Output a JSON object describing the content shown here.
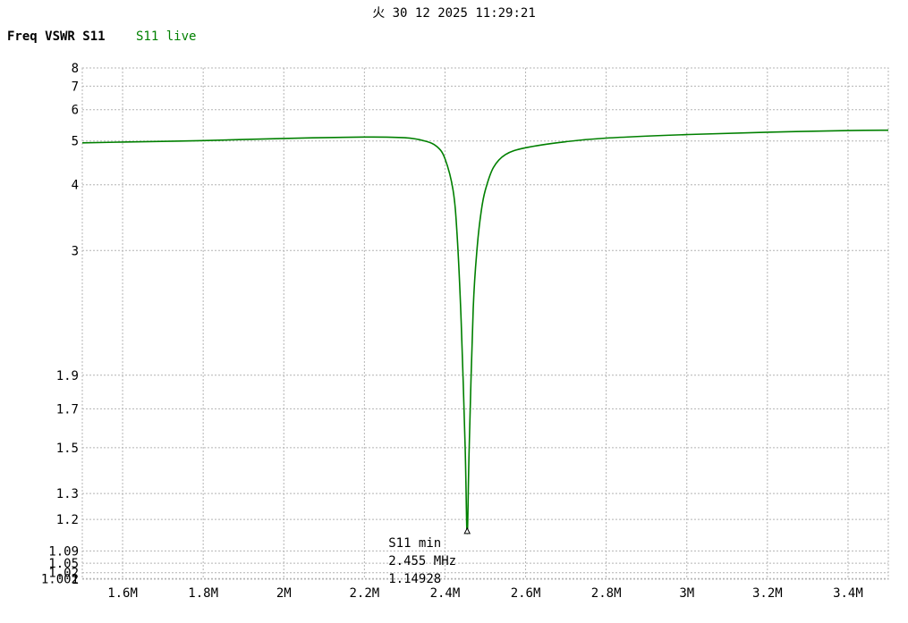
{
  "header": {
    "timestamp": "火 30 12 2025 11:29:21",
    "title": "Freq VSWR S11",
    "legend": "S11 live"
  },
  "colors": {
    "series": "#008000",
    "grid": "#b4b4b4",
    "text": "#000000"
  },
  "chart_data": {
    "type": "line",
    "title": "Freq VSWR S11",
    "xlabel": "",
    "ylabel": "",
    "xscale": "linear",
    "yscale": "vswr (reflection-coefficient scale)",
    "xlim": [
      1.5,
      3.5
    ],
    "ylim": [
      1,
      8
    ],
    "grid": true,
    "legend_position": "top-left",
    "x_ticks": [
      {
        "value": 1.6,
        "label": "1.6M"
      },
      {
        "value": 1.8,
        "label": "1.8M"
      },
      {
        "value": 2.0,
        "label": "2M"
      },
      {
        "value": 2.2,
        "label": "2.2M"
      },
      {
        "value": 2.4,
        "label": "2.4M"
      },
      {
        "value": 2.6,
        "label": "2.6M"
      },
      {
        "value": 2.8,
        "label": "2.8M"
      },
      {
        "value": 3.0,
        "label": "3M"
      },
      {
        "value": 3.2,
        "label": "3.2M"
      },
      {
        "value": 3.4,
        "label": "3.4M"
      }
    ],
    "y_ticks": [
      {
        "value": 8,
        "label": "8"
      },
      {
        "value": 7,
        "label": "7"
      },
      {
        "value": 6,
        "label": "6"
      },
      {
        "value": 5,
        "label": "5"
      },
      {
        "value": 4,
        "label": "4"
      },
      {
        "value": 3,
        "label": "3"
      },
      {
        "value": 1.9,
        "label": "1.9"
      },
      {
        "value": 1.7,
        "label": "1.7"
      },
      {
        "value": 1.5,
        "label": "1.5"
      },
      {
        "value": 1.3,
        "label": "1.3"
      },
      {
        "value": 1.2,
        "label": "1.2"
      },
      {
        "value": 1.09,
        "label": "1.09"
      },
      {
        "value": 1.05,
        "label": "1.05"
      },
      {
        "value": 1.02,
        "label": "1.02"
      },
      {
        "value": 1.002,
        "label": "1.002"
      },
      {
        "value": 1,
        "label": "1"
      }
    ],
    "series": [
      {
        "name": "S11 live",
        "color": "#008000",
        "x": [
          1.5,
          1.6,
          1.8,
          2.0,
          2.2,
          2.3,
          2.35,
          2.38,
          2.4,
          2.42,
          2.43,
          2.44,
          2.45,
          2.455,
          2.46,
          2.47,
          2.48,
          2.49,
          2.5,
          2.52,
          2.55,
          2.6,
          2.7,
          2.8,
          3.0,
          3.2,
          3.4,
          3.5
        ],
        "y": [
          4.95,
          4.97,
          5.01,
          5.07,
          5.11,
          5.09,
          5.0,
          4.85,
          4.55,
          3.9,
          3.2,
          2.3,
          1.5,
          1.149,
          1.5,
          2.4,
          3.05,
          3.55,
          3.9,
          4.35,
          4.65,
          4.82,
          4.98,
          5.08,
          5.18,
          5.25,
          5.3,
          5.31
        ]
      }
    ],
    "marker": {
      "label": "S11 min",
      "frequency": "2.455 MHz",
      "value_text": "1.14928",
      "x": 2.455,
      "y": 1.14928
    }
  }
}
